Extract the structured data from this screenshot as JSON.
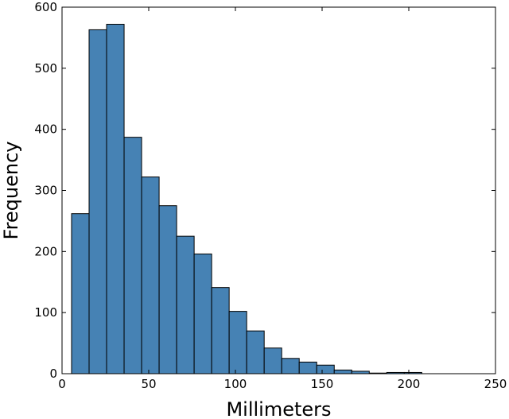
{
  "chart_data": {
    "type": "bar",
    "title": "",
    "xlabel": "Millimeters",
    "ylabel": "Frequency",
    "xlim": [
      0,
      250
    ],
    "ylim": [
      0,
      600
    ],
    "xticks": [
      0,
      50,
      100,
      150,
      200,
      250
    ],
    "yticks": [
      0,
      100,
      200,
      300,
      400,
      500,
      600
    ],
    "grid": false,
    "legend": "none",
    "bar_color": "#4682b4",
    "bin_edges": [
      5.5,
      15.6,
      25.7,
      35.8,
      45.9,
      56.0,
      66.1,
      76.2,
      86.3,
      96.4,
      106.5,
      116.6,
      126.7,
      136.8,
      146.9,
      157.0,
      167.1,
      177.2,
      187.3,
      197.4,
      207.5
    ],
    "values": [
      262,
      563,
      572,
      387,
      322,
      275,
      225,
      196,
      141,
      102,
      70,
      42,
      25,
      19,
      14,
      6,
      4,
      1,
      2,
      2
    ]
  }
}
